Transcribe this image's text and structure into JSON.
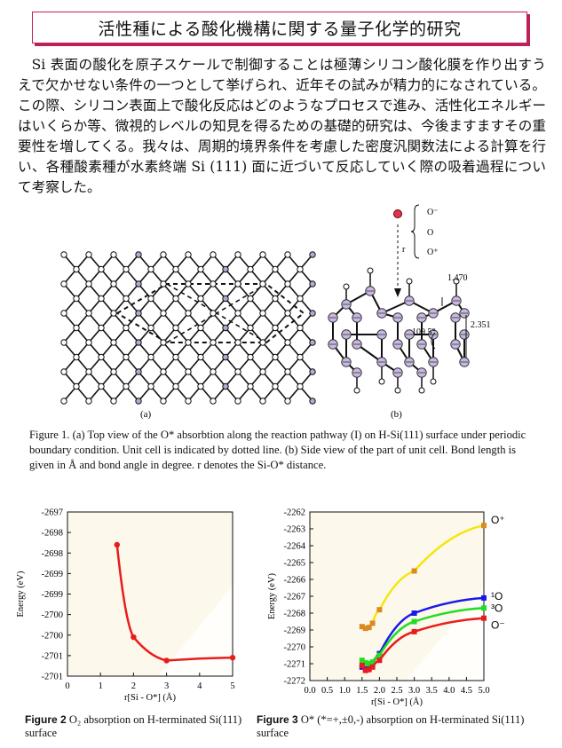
{
  "title": "活性種による酸化機構に関する量子化学的研究",
  "abstract": "Si 表面の酸化を原子スケールで制御することは極薄シリコン酸化膜を作り出すうえで欠かせない条件の一つとして挙げられ、近年その試みが精力的になされている。この際、シリコン表面上で酸化反応はどのようなプロセスで進み、活性化エネルギーはいくらか等、微視的レベルの知見を得るための基礎的研究は、今後ますますその重要性を増してくる。我々は、周期的境界条件を考慮した密度汎関数法による計算を行い、各種酸素種が水素終端 Si (111) 面に近づいて反応していく際の吸着過程について考察した。",
  "figure1": {
    "panel_a_label": "(a)",
    "panel_b_label": "(b)",
    "species_labels": [
      "O⁻",
      "O",
      "O⁺"
    ],
    "r_label": "r",
    "bond_length_1": "1.470",
    "bond_length_2": "2.351",
    "bond_angle": "109.5°",
    "caption": "Figure 1. (a) Top view of the O* absorbtion along the reaction pathway (I) on H-Si(111) surface under periodic boundary condition. Unit cell is indicated by dotted line. (b) Side view of the part of unit cell. Bond length is given in Å and bond angle in degree. r denotes the Si-O* distance."
  },
  "figure2": {
    "caption_bold": "Figure 2",
    "caption_rest": " O₂ absorption on H-terminated Si(111) surface"
  },
  "figure3": {
    "caption_bold": "Figure 3",
    "caption_rest": " O* (*=+,±0,-) absorption on H-terminated Si(111) surface"
  },
  "chart_data": [
    {
      "type": "line",
      "ylabel": "Energy (eV)",
      "xlabel": "r[Si - O*] (Å)",
      "xlim": [
        0,
        5
      ],
      "ylim": [
        -2701,
        -2697
      ],
      "x_ticks": [
        "0",
        "1",
        "2",
        "3",
        "4",
        "5"
      ],
      "y_ticks": [
        "-2697",
        "-2698",
        "-2698",
        "-2699",
        "-2699",
        "-2700",
        "-2700",
        "-2701",
        "-2701"
      ],
      "background": "#fdf8ec",
      "series": [
        {
          "color": "#e81c1c",
          "x": [
            1.5,
            2.0,
            3.0,
            5.0
          ],
          "y": [
            -2697.8,
            -2700.05,
            -2700.62,
            -2700.55
          ]
        }
      ]
    },
    {
      "type": "line",
      "ylabel": "Energy (eV)",
      "xlabel": "r[Si - O*] (Å)",
      "xlim": [
        0,
        5
      ],
      "ylim": [
        -2272,
        -2262
      ],
      "x_ticks": [
        "0.0",
        "0.5",
        "1.0",
        "1.5",
        "2.0",
        "2.5",
        "3.0",
        "3.5",
        "4.0",
        "4.5",
        "5.0"
      ],
      "y_ticks": [
        "-2262",
        "-2263",
        "-2264",
        "-2265",
        "-2266",
        "-2267",
        "-2268",
        "-2269",
        "-2270",
        "-2271",
        "-2272"
      ],
      "background": "#fdf8ec",
      "series": [
        {
          "name": "O⁺",
          "color": "#f5e60a",
          "marker": "#d98a20",
          "x": [
            1.5,
            1.6,
            1.7,
            1.8,
            2.0,
            3.0,
            5.0
          ],
          "y": [
            -2268.8,
            -2268.9,
            -2268.85,
            -2268.6,
            -2267.8,
            -2265.5,
            -2262.8
          ]
        },
        {
          "name": "¹O",
          "color": "#1a1ae8",
          "marker": "#1a1ae8",
          "x": [
            1.5,
            1.6,
            1.7,
            1.8,
            2.0,
            3.0,
            5.0
          ],
          "y": [
            -2271.2,
            -2271.3,
            -2271.25,
            -2271.1,
            -2270.4,
            -2268.0,
            -2267.1
          ]
        },
        {
          "name": "³O",
          "color": "#22dd22",
          "marker": "#22dd22",
          "x": [
            1.5,
            1.6,
            1.7,
            1.8,
            2.0,
            3.0,
            5.0
          ],
          "y": [
            -2270.8,
            -2270.95,
            -2271.0,
            -2270.9,
            -2270.5,
            -2268.5,
            -2267.7
          ]
        },
        {
          "name": "O⁻",
          "color": "#e81c1c",
          "marker": "#e81c1c",
          "x": [
            1.5,
            1.6,
            1.7,
            1.8,
            2.0,
            3.0,
            5.0
          ],
          "y": [
            -2271.1,
            -2271.4,
            -2271.35,
            -2271.2,
            -2270.8,
            -2269.1,
            -2268.3
          ]
        }
      ]
    }
  ]
}
